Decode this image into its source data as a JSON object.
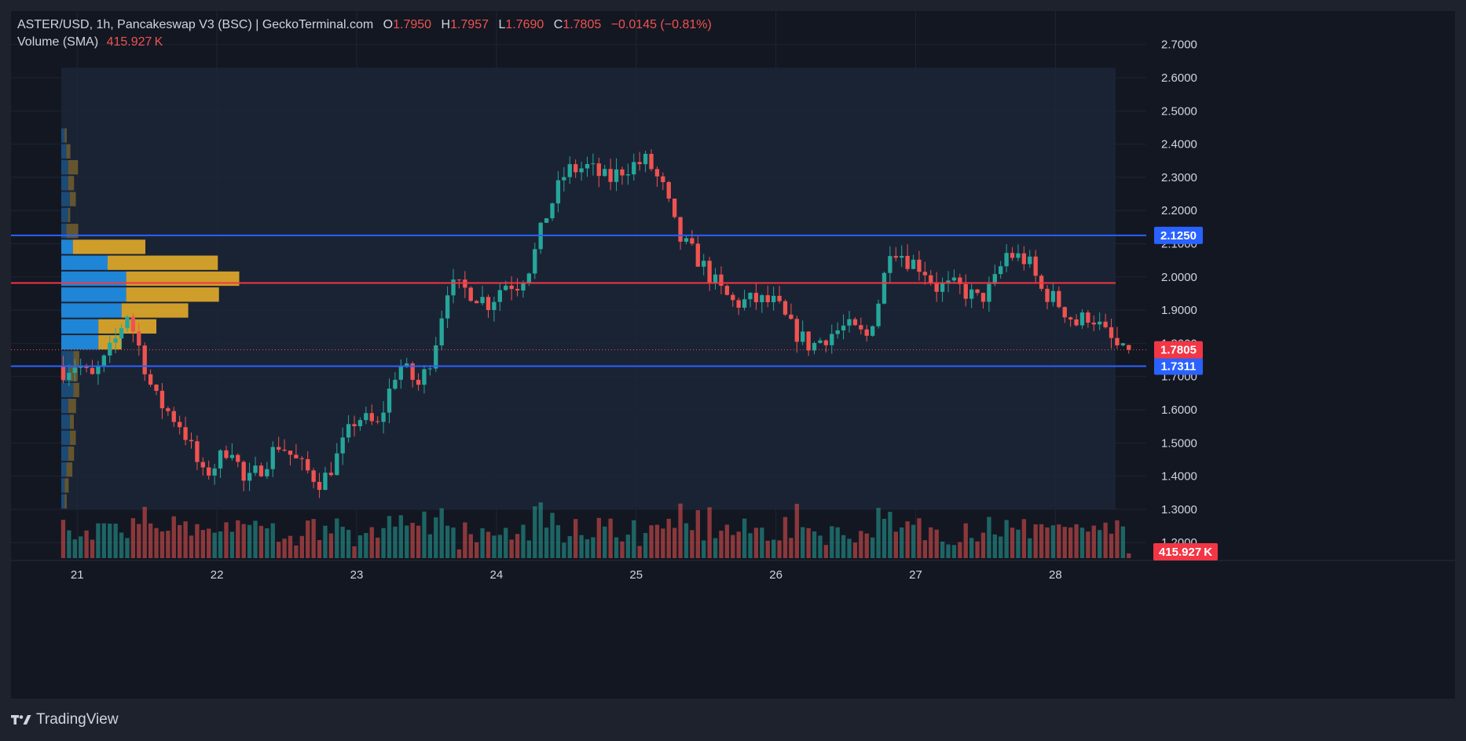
{
  "header": {
    "title": "ASTER/USD, 1h, Pancakeswap V3 (BSC) | GeckoTerminal.com",
    "ohlc": [
      {
        "key": "O",
        "value": "1.7950"
      },
      {
        "key": "H",
        "value": "1.7957"
      },
      {
        "key": "L",
        "value": "1.7690"
      },
      {
        "key": "C",
        "value": "1.7805"
      }
    ],
    "change": "−0.0145 (−0.81%)",
    "volume_label": "Volume (SMA)",
    "volume_value": "415.927 K"
  },
  "colors": {
    "background": "#131722",
    "frame": "#1e222d",
    "up": "#26a69a",
    "down": "#ef5350",
    "support_resistance": "#2962ff",
    "poc_line": "#f23645",
    "vp_value_area_up": "#2196f3",
    "vp_value_area_down": "#f0b429",
    "text": "#d1d4dc"
  },
  "branding": {
    "name": "TradingView",
    "logo_icon": "tradingview-logo-icon"
  },
  "chart_data": {
    "type": "candlestick",
    "symbol": "ASTER/USD",
    "interval": "1h",
    "exchange": "Pancakeswap V3 (BSC)",
    "x_tick_labels": [
      "21",
      "22",
      "23",
      "24",
      "25",
      "26",
      "27",
      "28"
    ],
    "y_tick_labels": [
      "1.2000",
      "1.3000",
      "1.4000",
      "1.5000",
      "1.6000",
      "1.7000",
      "1.8000",
      "1.9000",
      "2.0000",
      "2.1000",
      "2.2000",
      "2.3000",
      "2.4000",
      "2.5000",
      "2.6000",
      "2.7000"
    ],
    "ylim": [
      1.165,
      2.73
    ],
    "x_range_days": [
      20.92,
      28.65
    ],
    "candle_period_days": 0.0416667,
    "first_candle_day": 20.9,
    "close_path_keypoints": [
      [
        20.9,
        1.72
      ],
      [
        21.0,
        1.74
      ],
      [
        21.1,
        1.69
      ],
      [
        21.2,
        1.75
      ],
      [
        21.3,
        1.83
      ],
      [
        21.35,
        1.9
      ],
      [
        21.45,
        1.78
      ],
      [
        21.55,
        1.64
      ],
      [
        21.75,
        1.55
      ],
      [
        21.9,
        1.4
      ],
      [
        22.0,
        1.44
      ],
      [
        22.1,
        1.5
      ],
      [
        22.2,
        1.37
      ],
      [
        22.3,
        1.42
      ],
      [
        22.45,
        1.5
      ],
      [
        22.6,
        1.43
      ],
      [
        22.75,
        1.38
      ],
      [
        22.85,
        1.45
      ],
      [
        23.0,
        1.58
      ],
      [
        23.15,
        1.55
      ],
      [
        23.3,
        1.74
      ],
      [
        23.45,
        1.67
      ],
      [
        23.55,
        1.78
      ],
      [
        23.65,
        1.97
      ],
      [
        23.8,
        1.96
      ],
      [
        23.95,
        1.92
      ],
      [
        24.05,
        1.98
      ],
      [
        24.15,
        1.98
      ],
      [
        24.25,
        2.04
      ],
      [
        24.35,
        2.18
      ],
      [
        24.5,
        2.32
      ],
      [
        24.65,
        2.33
      ],
      [
        24.8,
        2.29
      ],
      [
        24.92,
        2.33
      ],
      [
        25.08,
        2.35
      ],
      [
        25.2,
        2.26
      ],
      [
        25.3,
        2.12
      ],
      [
        25.45,
        2.05
      ],
      [
        25.6,
        1.96
      ],
      [
        25.7,
        1.92
      ],
      [
        25.85,
        1.93
      ],
      [
        26.0,
        1.92
      ],
      [
        26.1,
        1.85
      ],
      [
        26.25,
        1.79
      ],
      [
        26.35,
        1.82
      ],
      [
        26.5,
        1.85
      ],
      [
        26.65,
        1.82
      ],
      [
        26.75,
        1.95
      ],
      [
        26.82,
        2.1
      ],
      [
        26.95,
        2.05
      ],
      [
        27.05,
        2.03
      ],
      [
        27.15,
        1.97
      ],
      [
        27.3,
        1.97
      ],
      [
        27.45,
        1.93
      ],
      [
        27.55,
        1.97
      ],
      [
        27.65,
        2.07
      ],
      [
        27.8,
        2.05
      ],
      [
        27.9,
        1.96
      ],
      [
        28.0,
        1.93
      ],
      [
        28.15,
        1.86
      ],
      [
        28.25,
        1.89
      ],
      [
        28.35,
        1.83
      ],
      [
        28.42,
        1.8
      ],
      [
        28.48,
        1.77
      ],
      [
        28.55,
        1.7805
      ]
    ],
    "volume_max_display": 415.927,
    "volume_profile": {
      "price_high": 2.45,
      "price_low": 1.3,
      "bins_up_length": [
        2,
        3,
        4,
        4,
        5,
        4,
        3,
        5,
        20,
        28,
        28,
        26,
        16,
        16,
        7,
        5,
        7,
        4,
        5,
        5,
        4,
        3,
        2,
        2
      ],
      "bins_down_length": [
        1,
        2,
        5,
        3,
        3,
        1,
        6,
        25,
        38,
        39,
        32,
        23,
        20,
        8,
        3,
        4,
        3,
        4,
        2,
        3,
        3,
        3,
        2,
        1
      ]
    },
    "horizontal_lines": [
      {
        "price": 2.125,
        "label": "2.1250",
        "color": "#2962ff"
      },
      {
        "price": 1.7311,
        "label": "1.7311",
        "color": "#2962ff"
      },
      {
        "price": 1.9818,
        "label": "",
        "color": "#f23645"
      }
    ],
    "last_price": {
      "price": 1.7805,
      "label": "1.7805"
    },
    "volume_label": {
      "label": "415.927 K"
    }
  }
}
